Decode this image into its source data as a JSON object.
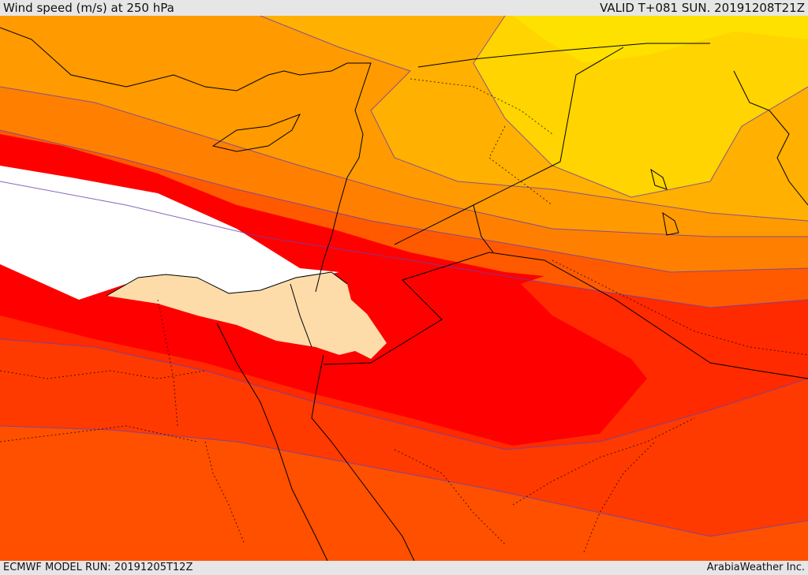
{
  "header": {
    "title": "Wind speed (m/s) at 250 hPa",
    "valid": "VALID T+081 SUN. 20191208T21Z"
  },
  "footer": {
    "run": "ECMWF MODEL RUN: 20191205T12Z",
    "credit": "ArabiaWeather Inc."
  },
  "colors": {
    "max_speed": "#ffffff",
    "very_high": "#ff0000",
    "high": "#ff2200",
    "mid_high": "#ff4400",
    "mid": "#ff6600",
    "mid_low": "#ff8000",
    "low": "#ff9900",
    "lower": "#ffb300",
    "lowest": "#ffcc00",
    "min": "#ffe000",
    "isotach_line": "#5a3aa0",
    "border_line": "#000000",
    "highlight_region": "#fddcaa"
  }
}
